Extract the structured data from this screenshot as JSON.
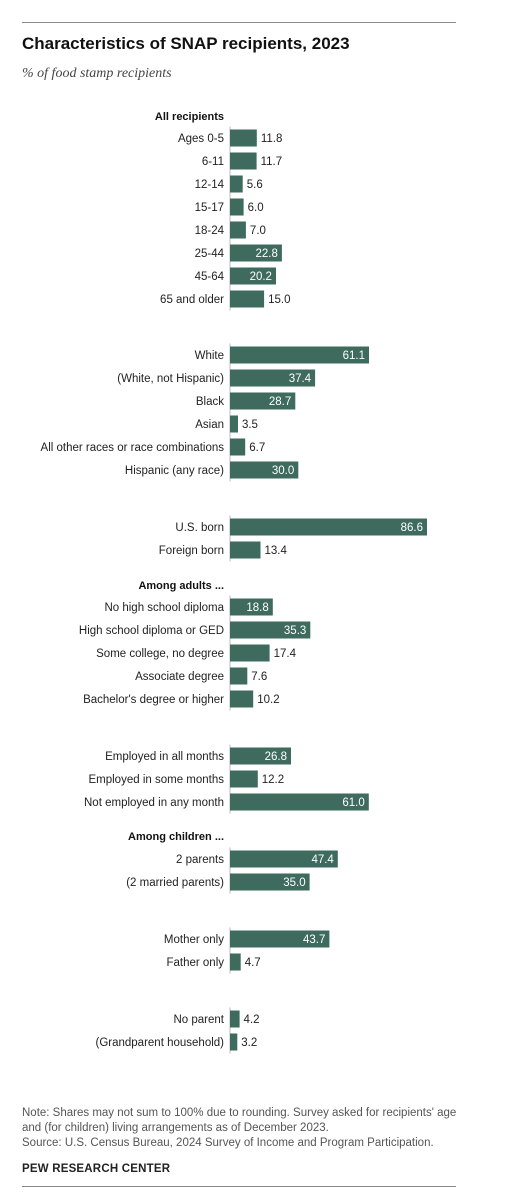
{
  "header": {
    "title": "Characteristics of SNAP recipients, 2023",
    "subtitle": "% of food stamp recipients"
  },
  "chart_data": {
    "type": "bar",
    "orientation": "horizontal",
    "unit": "%",
    "bar_color": "#3e6b5e",
    "inside_label_color": "#ffffff",
    "outside_label_color": "#222222",
    "grid": false,
    "xlim": [
      0,
      100
    ],
    "section_headings": [
      {
        "label": "All recipients",
        "before_index": 0
      },
      {
        "label": "Among adults ...",
        "before_index": 16
      },
      {
        "label": "Among children ...",
        "before_index": 24
      }
    ],
    "categories": [
      "Ages 0-5",
      "6-11",
      "12-14",
      "15-17",
      "18-24",
      "25-44",
      "45-64",
      "65 and older",
      "White",
      "(White, not Hispanic)",
      "Black",
      "Asian",
      "All other races or race combinations",
      "Hispanic (any race)",
      "U.S. born",
      "Foreign born",
      "No high school diploma",
      "High school diploma or GED",
      "Some college, no degree",
      "Associate degree",
      "Bachelor's degree or higher",
      "Employed in all months",
      "Employed in some months",
      "Not employed in any month",
      "2 parents",
      "(2 married parents)",
      "Mother only",
      "Father only",
      "No parent",
      "(Grandparent household)"
    ],
    "values": [
      11.8,
      11.7,
      5.6,
      6.0,
      7.0,
      22.8,
      20.2,
      15.0,
      61.1,
      37.4,
      28.7,
      3.5,
      6.7,
      30.0,
      86.6,
      13.4,
      18.8,
      35.3,
      17.4,
      7.6,
      10.2,
      26.8,
      12.2,
      61.0,
      47.4,
      35.0,
      43.7,
      4.7,
      4.2,
      3.2
    ],
    "value_labels": [
      "11.8",
      "11.7",
      "5.6",
      "6.0",
      "7.0",
      "22.8",
      "20.2",
      "15.0",
      "61.1",
      "37.4",
      "28.7",
      "3.5",
      "6.7",
      "30.0",
      "86.6",
      "13.4",
      "18.8",
      "35.3",
      "17.4",
      "7.6",
      "10.2",
      "26.8",
      "12.2",
      "61.0",
      "47.4",
      "35.0",
      "43.7",
      "4.7",
      "4.2",
      "3.2"
    ]
  },
  "footer": {
    "note_line1": "Note: Shares may not sum to 100% due to rounding. Survey asked for recipients' age and (for children) living arrangements as of December 2023.",
    "source": "Source: U.S. Census Bureau, 2024 Survey of Income and Program Participation.",
    "brand": "PEW RESEARCH CENTER"
  }
}
